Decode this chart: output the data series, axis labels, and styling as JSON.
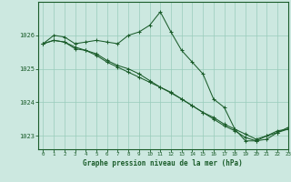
{
  "title": "Graphe pression niveau de la mer (hPa)",
  "bg_color": "#cce8e0",
  "plot_bg_color": "#cce8e0",
  "grid_color": "#99ccbb",
  "line_color": "#1a5c2a",
  "xlim": [
    -0.5,
    23
  ],
  "ylim": [
    1022.6,
    1027.0
  ],
  "yticks": [
    1023,
    1024,
    1025,
    1026
  ],
  "xticks": [
    0,
    1,
    2,
    3,
    4,
    5,
    6,
    7,
    8,
    9,
    10,
    11,
    12,
    13,
    14,
    15,
    16,
    17,
    18,
    19,
    20,
    21,
    22,
    23
  ],
  "series": [
    {
      "x": [
        0,
        1,
        2,
        3,
        4,
        5,
        6,
        7,
        8,
        9,
        10,
        11,
        12,
        13,
        14,
        15,
        16,
        17,
        18,
        19,
        20,
        21,
        22,
        23
      ],
      "y": [
        1025.75,
        1026.0,
        1025.95,
        1025.75,
        1025.8,
        1025.85,
        1025.8,
        1025.75,
        1026.0,
        1026.1,
        1026.3,
        1026.7,
        1026.1,
        1025.55,
        1025.2,
        1024.85,
        1024.1,
        1023.85,
        1023.2,
        1022.85,
        1022.85,
        1022.9,
        1023.1,
        1023.25
      ]
    },
    {
      "x": [
        0,
        1,
        2,
        3,
        4,
        5,
        6,
        7,
        8,
        9,
        10,
        11,
        12,
        13,
        14,
        15,
        16,
        17,
        18,
        19,
        20,
        21,
        22,
        23
      ],
      "y": [
        1025.75,
        1025.85,
        1025.8,
        1025.6,
        1025.55,
        1025.45,
        1025.25,
        1025.1,
        1025.0,
        1024.85,
        1024.65,
        1024.45,
        1024.3,
        1024.1,
        1023.9,
        1023.7,
        1023.55,
        1023.35,
        1023.2,
        1023.05,
        1022.9,
        1023.0,
        1023.15,
        1023.2
      ]
    },
    {
      "x": [
        0,
        1,
        2,
        3,
        4,
        5,
        6,
        7,
        8,
        9,
        10,
        11,
        12,
        13,
        14,
        15,
        16,
        17,
        18,
        19,
        20,
        21,
        22,
        23
      ],
      "y": [
        1025.75,
        1025.85,
        1025.8,
        1025.65,
        1025.55,
        1025.4,
        1025.2,
        1025.05,
        1024.9,
        1024.75,
        1024.6,
        1024.45,
        1024.28,
        1024.1,
        1023.9,
        1023.7,
        1023.5,
        1023.3,
        1023.15,
        1022.95,
        1022.85,
        1023.0,
        1023.1,
        1023.2
      ]
    }
  ]
}
